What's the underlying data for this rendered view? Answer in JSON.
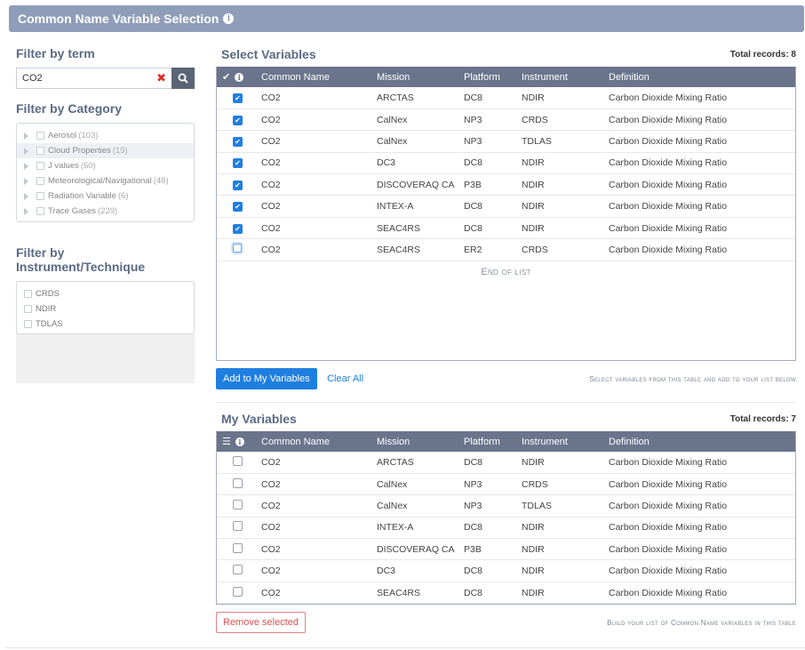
{
  "window": {
    "title": "Common Name Variable Selection"
  },
  "filters": {
    "term_title": "Filter by term",
    "search_value": "CO2",
    "category_title": "Filter by Category",
    "categories": [
      {
        "label": "Aerosol",
        "count": "(103)"
      },
      {
        "label": "Cloud Properties",
        "count": "(19)"
      },
      {
        "label": "J values",
        "count": "(60)"
      },
      {
        "label": "Meteorological/Navigational",
        "count": "(48)"
      },
      {
        "label": "Radiation Variable",
        "count": "(6)"
      },
      {
        "label": "Trace Gases",
        "count": "(229)"
      }
    ],
    "instrument_title": "Filter by Instrument/Technique",
    "instruments": [
      "CRDS",
      "NDIR",
      "TDLAS"
    ]
  },
  "select": {
    "title": "Select Variables",
    "total": "Total records: 8",
    "columns": [
      "Common Name",
      "Mission",
      "Platform",
      "Instrument",
      "Definition"
    ],
    "rows": [
      {
        "checked": true,
        "cells": [
          "CO2",
          "ARCTAS",
          "DC8",
          "NDIR",
          "Carbon Dioxide Mixing Ratio"
        ]
      },
      {
        "checked": true,
        "cells": [
          "CO2",
          "CalNex",
          "NP3",
          "CRDS",
          "Carbon Dioxide Mixing Ratio"
        ]
      },
      {
        "checked": true,
        "cells": [
          "CO2",
          "CalNex",
          "NP3",
          "TDLAS",
          "Carbon Dioxide Mixing Ratio"
        ]
      },
      {
        "checked": true,
        "cells": [
          "CO2",
          "DC3",
          "DC8",
          "NDIR",
          "Carbon Dioxide Mixing Ratio"
        ]
      },
      {
        "checked": true,
        "cells": [
          "CO2",
          "DISCOVERAQ CA",
          "P3B",
          "NDIR",
          "Carbon Dioxide Mixing Ratio"
        ]
      },
      {
        "checked": true,
        "cells": [
          "CO2",
          "INTEX-A",
          "DC8",
          "NDIR",
          "Carbon Dioxide Mixing Ratio"
        ]
      },
      {
        "checked": true,
        "cells": [
          "CO2",
          "SEAC4RS",
          "DC8",
          "NDIR",
          "Carbon Dioxide Mixing Ratio"
        ]
      },
      {
        "checked": false,
        "cells": [
          "CO2",
          "SEAC4RS",
          "ER2",
          "CRDS",
          "Carbon Dioxide Mixing Ratio"
        ]
      }
    ],
    "end_of_list": "End of list",
    "add_button": "Add to My Variables",
    "clear_all": "Clear All",
    "hint": "Select variables from this table and add to your list below"
  },
  "mine": {
    "title": "My Variables",
    "total": "Total records: 7",
    "columns": [
      "Common Name",
      "Mission",
      "Platform",
      "Instrument",
      "Definition"
    ],
    "rows": [
      [
        "CO2",
        "ARCTAS",
        "DC8",
        "NDIR",
        "Carbon Dioxide Mixing Ratio"
      ],
      [
        "CO2",
        "CalNex",
        "NP3",
        "CRDS",
        "Carbon Dioxide Mixing Ratio"
      ],
      [
        "CO2",
        "CalNex",
        "NP3",
        "TDLAS",
        "Carbon Dioxide Mixing Ratio"
      ],
      [
        "CO2",
        "INTEX-A",
        "DC8",
        "NDIR",
        "Carbon Dioxide Mixing Ratio"
      ],
      [
        "CO2",
        "DISCOVERAQ CA",
        "P3B",
        "NDIR",
        "Carbon Dioxide Mixing Ratio"
      ],
      [
        "CO2",
        "DC3",
        "DC8",
        "NDIR",
        "Carbon Dioxide Mixing Ratio"
      ],
      [
        "CO2",
        "SEAC4RS",
        "DC8",
        "NDIR",
        "Carbon Dioxide Mixing Ratio"
      ]
    ],
    "remove_button": "Remove selected",
    "hint": "Build your list of Common Name variables in this table"
  },
  "icons": {
    "info": "info-icon",
    "search": "search-icon",
    "clear": "clear-icon",
    "check": "check-icon",
    "list": "list-icon"
  },
  "colors": {
    "header": "#8f9db8",
    "table_header": "#6a748b",
    "accent": "#1f7fe0",
    "danger": "#d9534f"
  }
}
